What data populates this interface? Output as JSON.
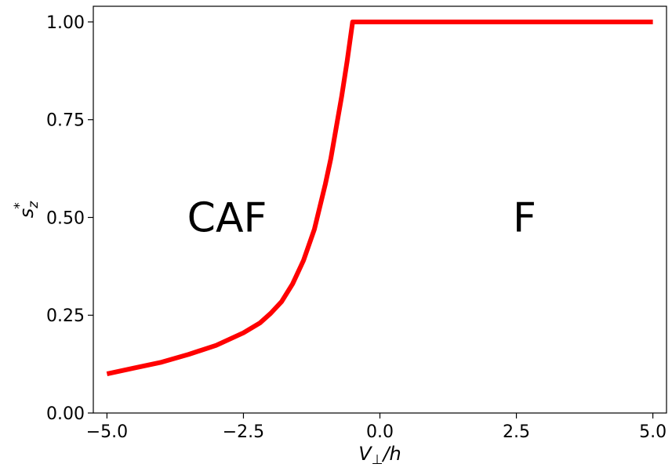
{
  "chart_data": {
    "type": "line",
    "title": "",
    "xlabel": {
      "main": "V",
      "subscript": "⊥",
      "suffix": "/h"
    },
    "ylabel": {
      "main": "s",
      "subscript": "z",
      "superscript": "*"
    },
    "xlim": [
      -5.25,
      5.25
    ],
    "ylim": [
      0.0,
      1.04
    ],
    "x_ticks": [
      -5.0,
      -2.5,
      0.0,
      2.5,
      5.0
    ],
    "x_tick_labels": [
      "−5.0",
      "−2.5",
      "0.0",
      "2.5",
      "5.0"
    ],
    "y_ticks": [
      0.0,
      0.25,
      0.5,
      0.75,
      1.0
    ],
    "y_tick_labels": [
      "0.00",
      "0.25",
      "0.50",
      "0.75",
      "1.00"
    ],
    "grid": false,
    "legend": "none",
    "series": [
      {
        "color": "#ff0000",
        "x": [
          -5.0,
          -4.5,
          -4.0,
          -3.5,
          -3.0,
          -2.5,
          -2.2,
          -2.0,
          -1.8,
          -1.6,
          -1.4,
          -1.2,
          -1.0,
          -0.9,
          -0.8,
          -0.7,
          -0.6,
          -0.5,
          0.0,
          1.0,
          2.0,
          3.0,
          4.0,
          5.0
        ],
        "y": [
          0.1,
          0.115,
          0.13,
          0.15,
          0.173,
          0.205,
          0.23,
          0.255,
          0.285,
          0.33,
          0.39,
          0.47,
          0.585,
          0.65,
          0.73,
          0.81,
          0.9,
          1.0,
          1.0,
          1.0,
          1.0,
          1.0,
          1.0,
          1.0
        ]
      }
    ],
    "annotations": [
      {
        "text": "CAF",
        "x": -2.8,
        "y": 0.5
      },
      {
        "text": "F",
        "x": 2.65,
        "y": 0.5
      }
    ]
  }
}
